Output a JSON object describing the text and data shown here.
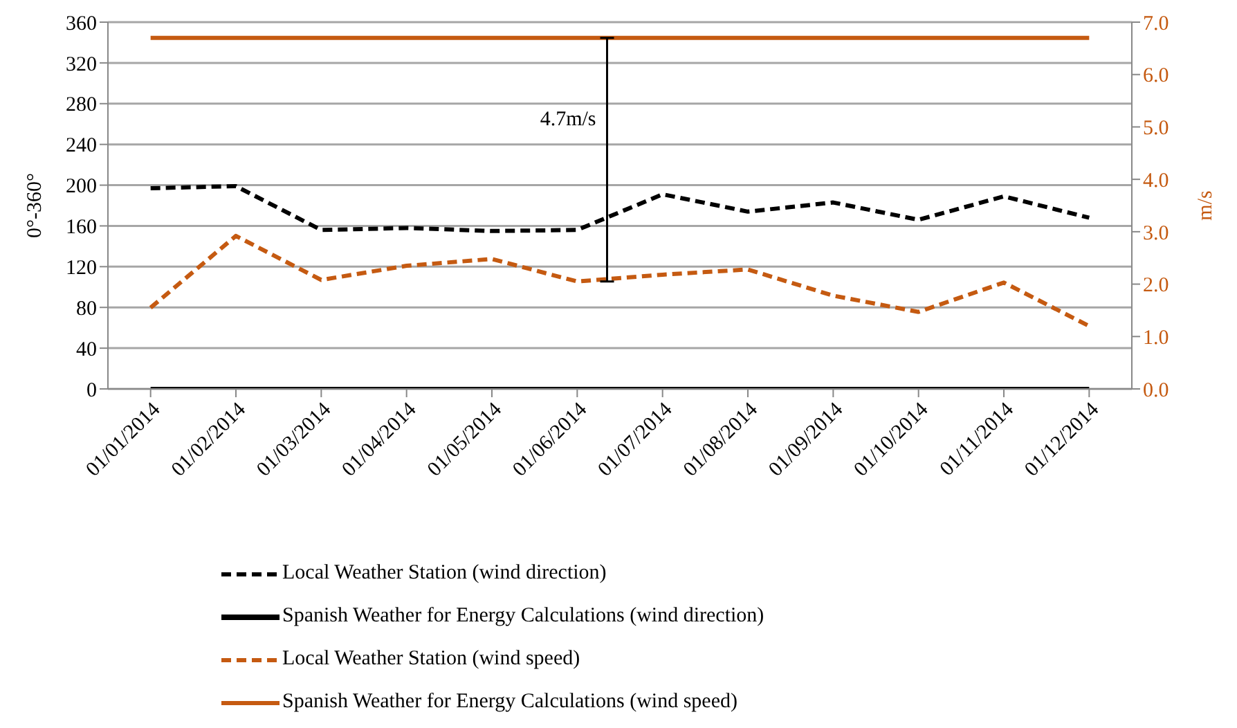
{
  "chart_data": {
    "type": "line",
    "ylabel": "0°-360°",
    "y2label": "m/s",
    "categories": [
      "01/01/2014",
      "01/02/2014",
      "01/03/2014",
      "01/04/2014",
      "01/05/2014",
      "01/06/2014",
      "01/07/2014",
      "01/08/2014",
      "01/09/2014",
      "01/10/2014",
      "01/11/2014",
      "01/12/2014"
    ],
    "series": [
      {
        "name": "Local Weather Station (wind direction)",
        "color": "#000000",
        "line_style": "dashed",
        "values": [
          197,
          199,
          156,
          158,
          155,
          156,
          191,
          174,
          183,
          166,
          189,
          168
        ]
      },
      {
        "name": "Spanish Weather for Energy Calculations (wind direction)",
        "color": "#000000",
        "line_style": "solid",
        "values": [
          0,
          0,
          0,
          0,
          0,
          0,
          0,
          0,
          0,
          0,
          0,
          0
        ]
      },
      {
        "name": "Local Weather Station (wind speed)",
        "color": "#c55a11",
        "line_style": "dashed",
        "axis": "y2",
        "values": [
          1.55,
          2.92,
          2.08,
          2.35,
          2.48,
          2.05,
          2.18,
          2.28,
          1.78,
          1.47,
          2.03,
          1.2
        ]
      },
      {
        "name": "Spanish Weather for Energy Calculations (wind speed)",
        "color": "#c55a11",
        "line_style": "solid",
        "axis": "y2",
        "values": [
          6.7,
          6.7,
          6.7,
          6.7,
          6.7,
          6.7,
          6.7,
          6.7,
          6.7,
          6.7,
          6.7,
          6.7
        ]
      }
    ],
    "ylim": [
      0,
      360
    ],
    "yticks": [
      0,
      40,
      80,
      120,
      160,
      200,
      240,
      280,
      320,
      360
    ],
    "y2lim": [
      0,
      7
    ],
    "y2ticks": [
      {
        "value": 0,
        "label": "0.0"
      },
      {
        "value": 1,
        "label": "1.0"
      },
      {
        "value": 2,
        "label": "2.0"
      },
      {
        "value": 3,
        "label": "3.0"
      },
      {
        "value": 4,
        "label": "4.0"
      },
      {
        "value": 5,
        "label": "5.0"
      },
      {
        "value": 6,
        "label": "6.0"
      },
      {
        "value": 7,
        "label": "7.0"
      }
    ],
    "annotations": [
      "4.7m/s"
    ],
    "grid": "y",
    "legend": "bottom",
    "marker": "none"
  }
}
